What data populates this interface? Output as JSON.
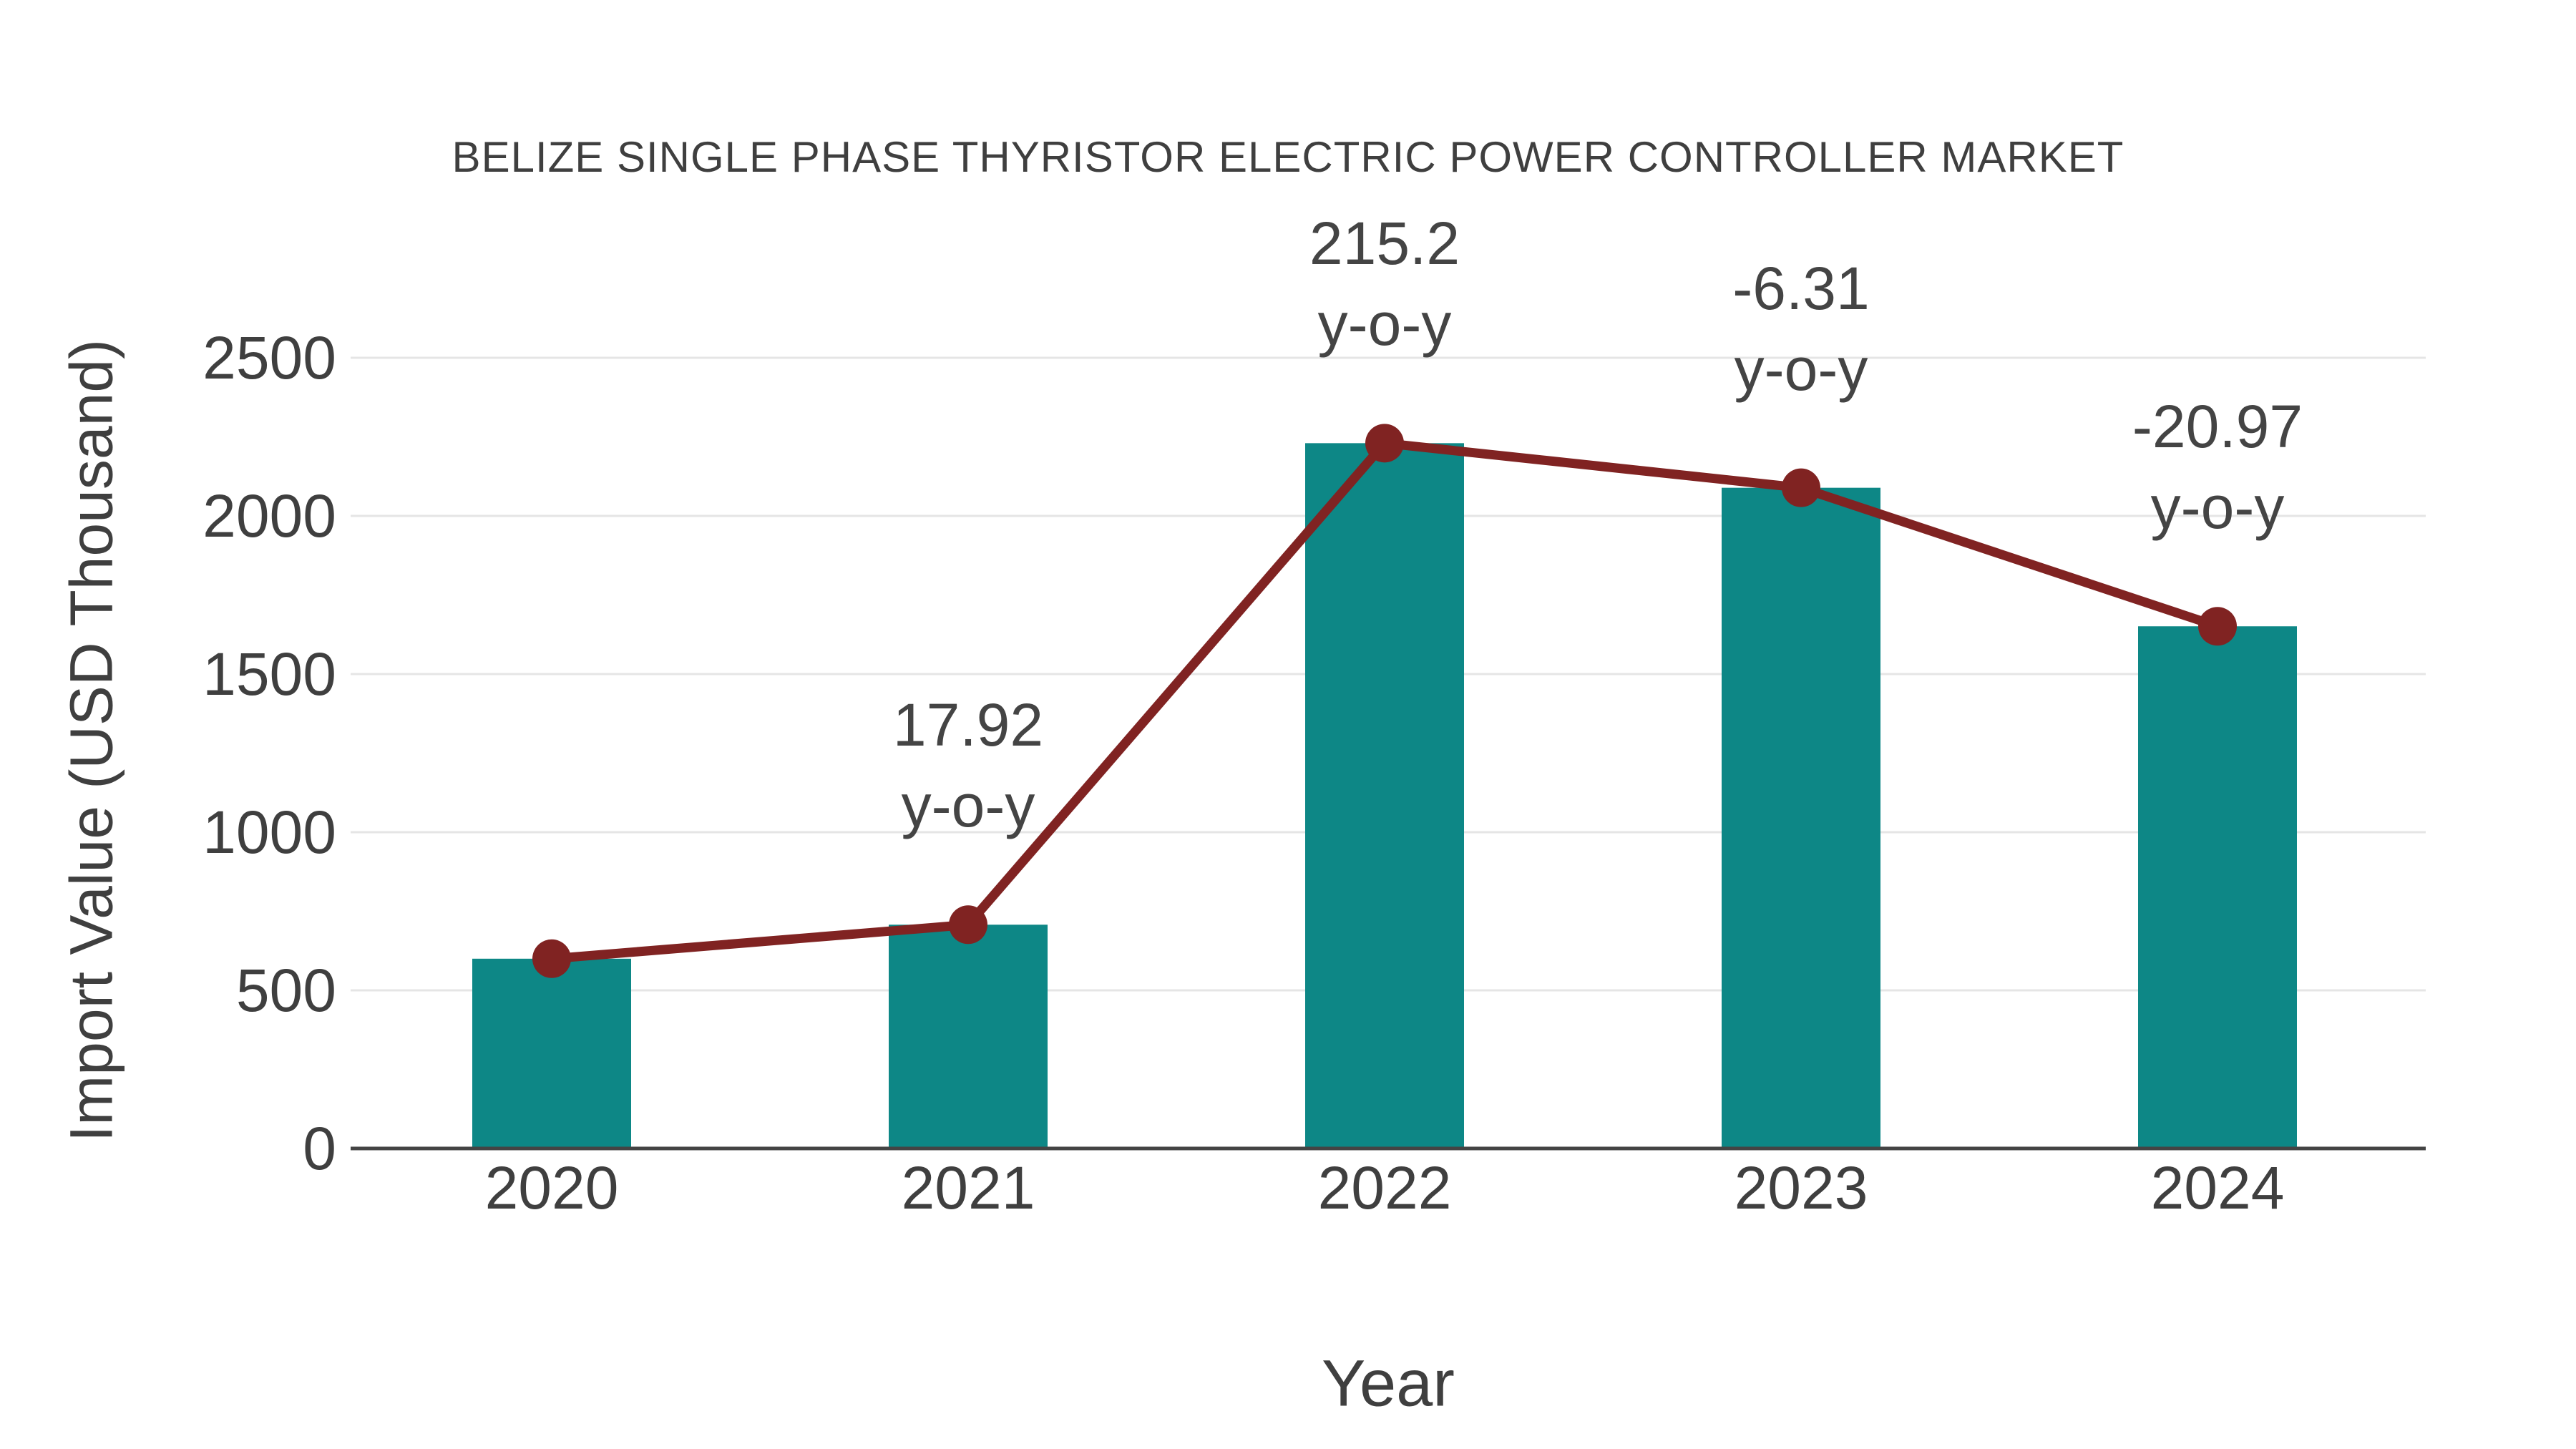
{
  "chart_data": {
    "type": "bar+line",
    "title": "BELIZE SINGLE PHASE THYRISTOR ELECTRIC POWER CONTROLLER MARKET",
    "categories": [
      "2020",
      "2021",
      "2022",
      "2023",
      "2024"
    ],
    "bar_values": [
      600,
      707.5,
      2230,
      2089,
      1651
    ],
    "line_values": [
      600,
      707.5,
      2230,
      2089,
      1651
    ],
    "annotations": [
      {
        "category": "2021",
        "text_lines": [
          "17.92",
          "y-o-y"
        ]
      },
      {
        "category": "2022",
        "text_lines": [
          "215.2",
          "y-o-y"
        ]
      },
      {
        "category": "2023",
        "text_lines": [
          "-6.31",
          "y-o-y"
        ]
      },
      {
        "category": "2024",
        "text_lines": [
          "-20.97",
          "y-o-y"
        ]
      }
    ],
    "xlabel": "Year",
    "ylabel": "Import Value (USD Thousand)",
    "yticks": [
      "0",
      "500",
      "1000",
      "1500",
      "2000",
      "2500"
    ],
    "ylim": [
      0,
      2500
    ],
    "grid": true,
    "legend": false
  },
  "colors": {
    "bar": "#0D8786",
    "line": "#802322",
    "grid": "#E5E5E5",
    "axis": "#444444",
    "text": "#3F3F3F"
  }
}
